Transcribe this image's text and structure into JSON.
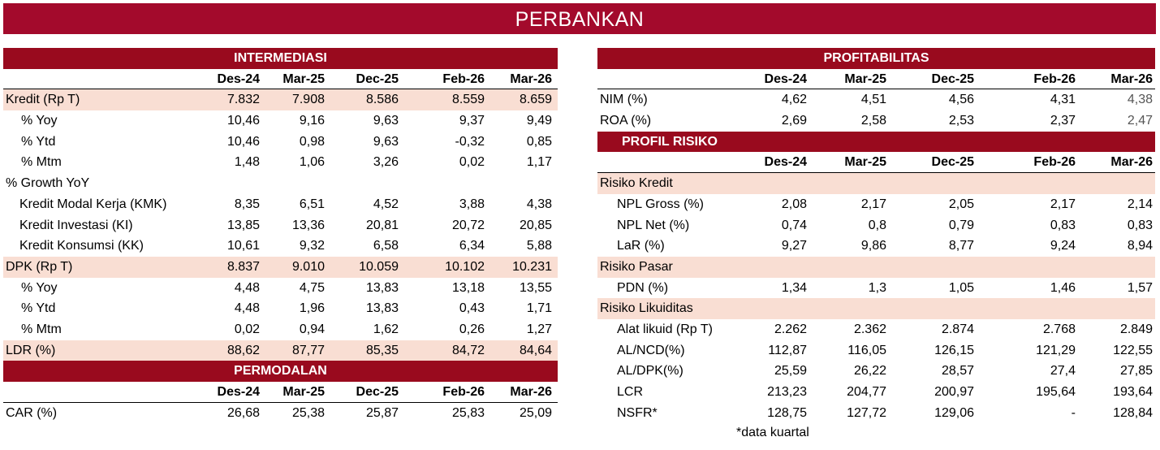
{
  "title": "PERBANKAN",
  "columns": [
    "Des-24",
    "Mar-25",
    "Dec-25",
    "Feb-26",
    "Mar-26"
  ],
  "intermediasi": {
    "header": "INTERMEDIASI",
    "rows": [
      {
        "label": "Kredit (Rp T)",
        "values": [
          "7.832",
          "7.908",
          "8.586",
          "8.559",
          "8.659"
        ]
      },
      {
        "label": "% Yoy",
        "values": [
          "10,46",
          "9,16",
          "9,63",
          "9,37",
          "9,49"
        ]
      },
      {
        "label": "% Ytd",
        "values": [
          "10,46",
          "0,98",
          "9,63",
          "-0,32",
          "0,85"
        ]
      },
      {
        "label": "% Mtm",
        "values": [
          "1,48",
          "1,06",
          "3,26",
          "0,02",
          "1,17"
        ]
      },
      {
        "label": "% Growth YoY",
        "values": [
          "",
          "",
          "",
          "",
          ""
        ]
      },
      {
        "label": "Kredit Modal Kerja (KMK)",
        "values": [
          "8,35",
          "6,51",
          "4,52",
          "3,88",
          "4,38"
        ]
      },
      {
        "label": "Kredit Investasi (KI)",
        "values": [
          "13,85",
          "13,36",
          "20,81",
          "20,72",
          "20,85"
        ]
      },
      {
        "label": "Kredit Konsumsi (KK)",
        "values": [
          "10,61",
          "9,32",
          "6,58",
          "6,34",
          "5,88"
        ]
      },
      {
        "label": "DPK (Rp T)",
        "values": [
          "8.837",
          "9.010",
          "10.059",
          "10.102",
          "10.231"
        ]
      },
      {
        "label": "% Yoy",
        "values": [
          "4,48",
          "4,75",
          "13,83",
          "13,18",
          "13,55"
        ]
      },
      {
        "label": "% Ytd",
        "values": [
          "4,48",
          "1,96",
          "13,83",
          "0,43",
          "1,71"
        ]
      },
      {
        "label": "% Mtm",
        "values": [
          "0,02",
          "0,94",
          "1,62",
          "0,26",
          "1,27"
        ]
      },
      {
        "label": "LDR (%)",
        "values": [
          "88,62",
          "87,77",
          "85,35",
          "84,72",
          "84,64"
        ]
      }
    ]
  },
  "permodalan": {
    "header": "PERMODALAN",
    "rows": [
      {
        "label": "CAR (%)",
        "values": [
          "26,68",
          "25,38",
          "25,87",
          "25,83",
          "25,09"
        ]
      }
    ]
  },
  "profitabilitas": {
    "header": "PROFITABILITAS",
    "rows": [
      {
        "label": "NIM (%)",
        "values": [
          "4,62",
          "4,51",
          "4,56",
          "4,31",
          "4,38"
        ]
      },
      {
        "label": "ROA (%)",
        "values": [
          "2,69",
          "2,58",
          "2,53",
          "2,37",
          "2,47"
        ]
      }
    ]
  },
  "profil_risiko": {
    "header": "PROFIL RISIKO",
    "rows": [
      {
        "label": "Risiko Kredit",
        "values": [
          "",
          "",
          "",
          "",
          ""
        ]
      },
      {
        "label": "NPL Gross (%)",
        "values": [
          "2,08",
          "2,17",
          "2,05",
          "2,17",
          "2,14"
        ]
      },
      {
        "label": "NPL Net (%)",
        "values": [
          "0,74",
          "0,8",
          "0,79",
          "0,83",
          "0,83"
        ]
      },
      {
        "label": "LaR (%)",
        "values": [
          "9,27",
          "9,86",
          "8,77",
          "9,24",
          "8,94"
        ]
      },
      {
        "label": "Risiko Pasar",
        "values": [
          "",
          "",
          "",
          "",
          ""
        ]
      },
      {
        "label": "PDN (%)",
        "values": [
          "1,34",
          "1,3",
          "1,05",
          "1,46",
          "1,57"
        ]
      },
      {
        "label": "Risiko Likuiditas",
        "values": [
          "",
          "",
          "",
          "",
          ""
        ]
      },
      {
        "label": "Alat likuid (Rp T)",
        "values": [
          "2.262",
          "2.362",
          "2.874",
          "2.768",
          "2.849"
        ]
      },
      {
        "label": "AL/NCD(%)",
        "values": [
          "112,87",
          "116,05",
          "126,15",
          "121,29",
          "122,55"
        ]
      },
      {
        "label": "AL/DPK(%)",
        "values": [
          "25,59",
          "26,22",
          "28,57",
          "27,4",
          "27,85"
        ]
      },
      {
        "label": "LCR",
        "values": [
          "213,23",
          "204,77",
          "200,97",
          "195,64",
          "193,64"
        ]
      },
      {
        "label": "NSFR*",
        "values": [
          "128,75",
          "127,72",
          "129,06",
          "-",
          "128,84"
        ]
      }
    ]
  },
  "footnote": "*data kuartal"
}
